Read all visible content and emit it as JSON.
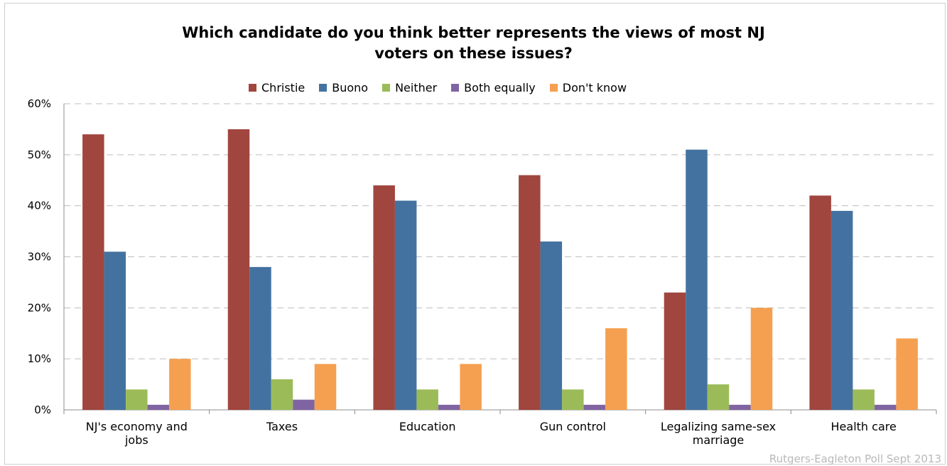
{
  "chart_data": {
    "type": "bar",
    "title_lines": [
      "Which candidate do you think better represents the views of most NJ",
      "voters on these issues?"
    ],
    "categories": [
      [
        "NJ's economy and",
        "jobs"
      ],
      [
        "Taxes"
      ],
      [
        "Education"
      ],
      [
        "Gun control"
      ],
      [
        "Legalizing same-sex",
        "marriage"
      ],
      [
        "Health care"
      ]
    ],
    "series": [
      {
        "name": "Christie",
        "color": "#a0463f",
        "values": [
          54,
          55,
          44,
          46,
          23,
          42
        ]
      },
      {
        "name": "Buono",
        "color": "#4472a0",
        "values": [
          31,
          28,
          41,
          33,
          51,
          39
        ]
      },
      {
        "name": "Neither",
        "color": "#9bbb59",
        "values": [
          4,
          6,
          4,
          4,
          5,
          4
        ]
      },
      {
        "name": "Both equally",
        "color": "#8064a2",
        "values": [
          1,
          2,
          1,
          1,
          1,
          1
        ]
      },
      {
        "name": "Don't know",
        "color": "#f5a050",
        "values": [
          10,
          9,
          9,
          16,
          20,
          14
        ]
      }
    ],
    "ylim": [
      0,
      60
    ],
    "yticks": [
      "0%",
      "10%",
      "20%",
      "30%",
      "40%",
      "50%",
      "60%"
    ],
    "grid": true,
    "legend_position": "top"
  },
  "source_note": "Rutgers-Eagleton Poll Sept 2013"
}
